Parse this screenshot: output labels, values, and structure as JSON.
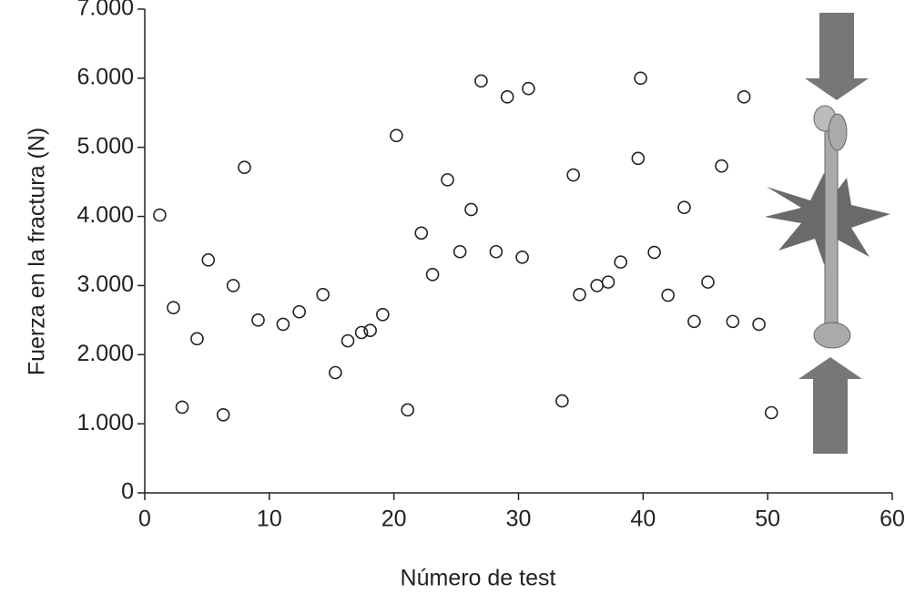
{
  "chart_data": {
    "type": "scatter",
    "x_label": "Número de test",
    "y_label": "Fuerza en la fractura (N)",
    "xlim": [
      0,
      60
    ],
    "xticks": [
      0,
      10,
      20,
      30,
      40,
      50,
      60
    ],
    "ylim": [
      0,
      7000
    ],
    "yticks": [
      0,
      {
        "value": 1000,
        "label": "1.000"
      },
      {
        "value": 2000,
        "label": "2.000"
      },
      {
        "value": 3000,
        "label": "3.000"
      },
      {
        "value": 4000,
        "label": "4.000"
      },
      {
        "value": 5000,
        "label": "5.000"
      },
      {
        "value": 6000,
        "label": "6.000"
      },
      {
        "value": 7000,
        "label": "7.000"
      }
    ],
    "marker_color": "#222222",
    "x": [
      1.2,
      2.3,
      3.0,
      4.2,
      5.1,
      6.3,
      7.1,
      8.0,
      9.1,
      11.1,
      12.4,
      14.3,
      15.3,
      16.3,
      17.4,
      18.1,
      19.1,
      20.2,
      21.1,
      22.2,
      23.1,
      24.3,
      25.3,
      26.2,
      27.0,
      28.2,
      29.1,
      30.3,
      30.8,
      33.5,
      34.4,
      34.9,
      36.3,
      37.2,
      38.2,
      39.6,
      39.8,
      40.9,
      42.0,
      43.3,
      44.1,
      45.2,
      46.3,
      47.2,
      48.1,
      49.3,
      50.3
    ],
    "values": [
      4020,
      2680,
      1240,
      2230,
      3370,
      1130,
      3000,
      4710,
      2500,
      2440,
      2620,
      2870,
      1740,
      2200,
      2320,
      2350,
      2580,
      5170,
      1200,
      3760,
      3160,
      4530,
      3490,
      4100,
      5960,
      3490,
      5730,
      3410,
      5850,
      1330,
      4600,
      2870,
      3000,
      3050,
      3340,
      4840,
      6000,
      3480,
      2860,
      4130,
      2480,
      3050,
      4730,
      2480,
      5730,
      2440,
      1160
    ]
  }
}
